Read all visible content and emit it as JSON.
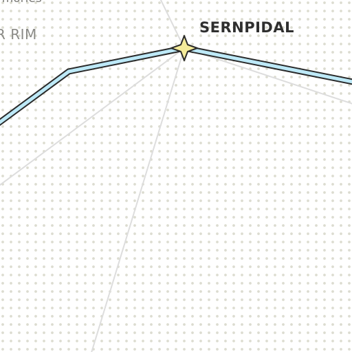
{
  "map": {
    "labels": {
      "faint_partial": "rmories",
      "region_partial": "R RIM",
      "system_name": "SERNPIDAL"
    },
    "icons": {
      "system_marker": "four-point-star-icon"
    },
    "colors": {
      "background": "#ffffff",
      "grid_dot": "#dcdcd0",
      "route_fill": "#bde9f7",
      "route_outline": "#2a2a2a",
      "star_fill": "#f4eb9a",
      "connector": "#dddddd"
    }
  }
}
